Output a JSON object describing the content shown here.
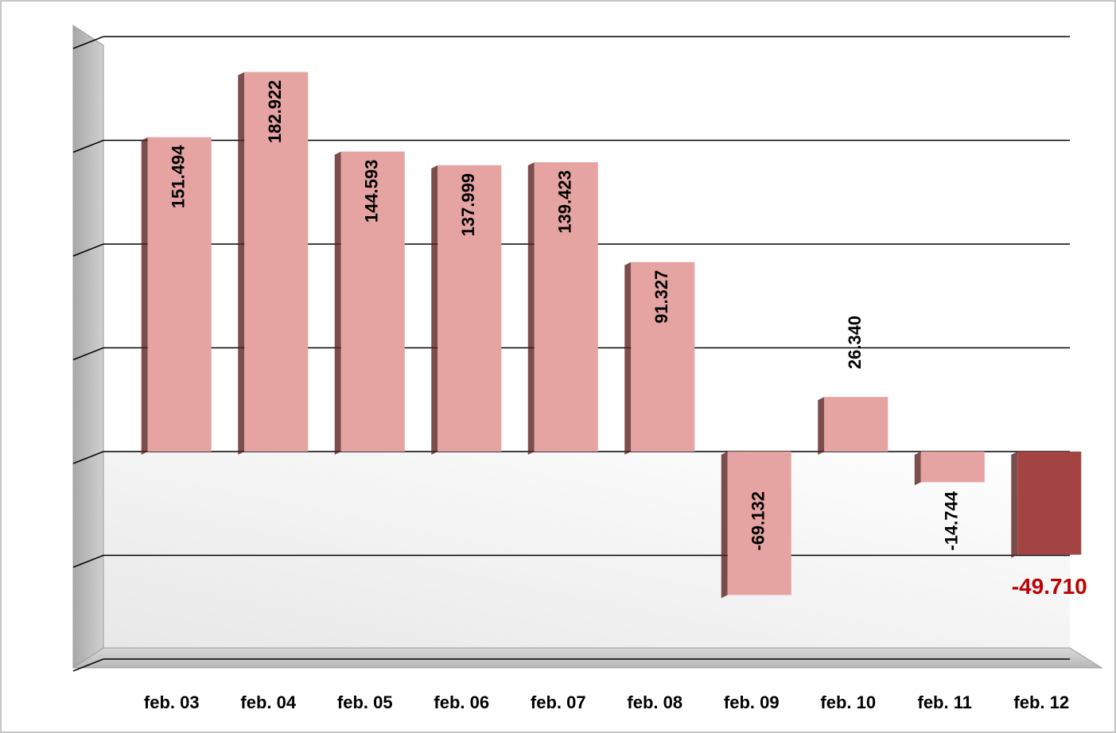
{
  "chart_data": {
    "type": "bar",
    "categories": [
      "feb. 03",
      "feb. 04",
      "feb. 05",
      "feb. 06",
      "feb. 07",
      "feb. 08",
      "feb. 09",
      "feb. 10",
      "feb. 11",
      "feb. 12"
    ],
    "values": [
      151.494,
      182.922,
      144.593,
      137.999,
      139.423,
      91.327,
      -69.132,
      26.34,
      -14.744,
      -49.71
    ],
    "value_labels": [
      "151.494",
      "182.922",
      "144.593",
      "137.999",
      "139.423",
      "91.327",
      "-69.132",
      "26.340",
      "-14.744",
      "-49.710"
    ],
    "colors": [
      "#e5a3a2",
      "#e5a3a2",
      "#e5a3a2",
      "#e5a3a2",
      "#e5a3a2",
      "#e5a3a2",
      "#e5a3a2",
      "#e5a3a2",
      "#e5a3a2",
      "#a34442"
    ],
    "ylim": [
      -100,
      200
    ],
    "yticks": [
      -100,
      -50,
      0,
      50,
      100,
      150,
      200
    ],
    "grid": true
  }
}
